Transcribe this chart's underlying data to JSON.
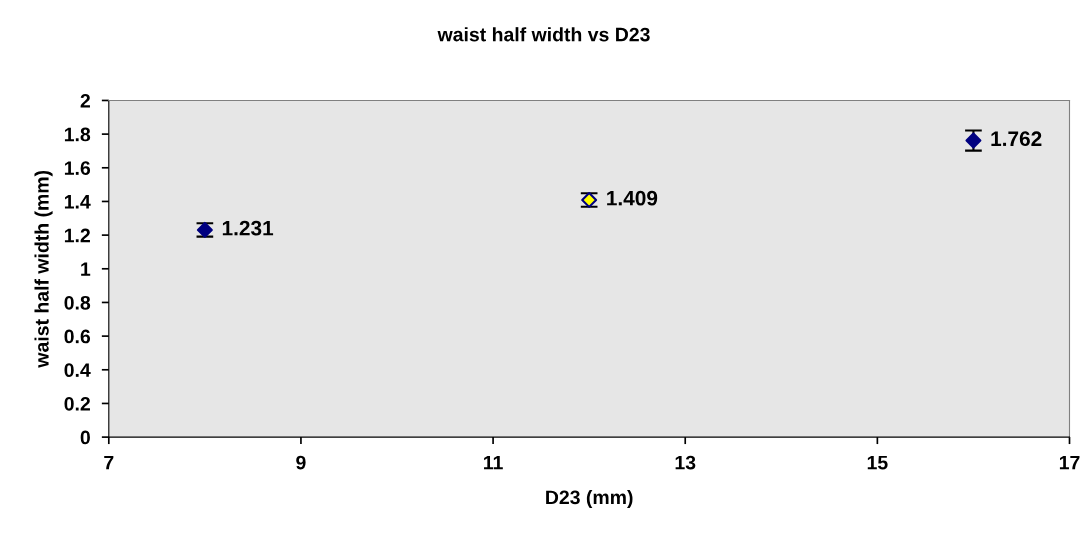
{
  "chart_data": {
    "type": "scatter",
    "title": "waist half width vs D23",
    "xlabel": "D23 (mm)",
    "ylabel": "waist half width (mm)",
    "x": [
      8,
      12,
      16
    ],
    "series": [
      {
        "color": "#000080",
        "colors": [
          "#000080",
          "#ffff00",
          "#000080"
        ],
        "values": [
          1.231,
          1.409,
          1.762
        ],
        "errors": [
          0.04,
          0.04,
          0.06
        ]
      }
    ],
    "data_labels": true,
    "marker": "diamond",
    "grid": false,
    "xlim": [
      7,
      17
    ],
    "xticks": [
      7,
      9,
      11,
      13,
      15,
      17
    ],
    "ylim": [
      0,
      2
    ],
    "yticks": [
      0,
      0.2,
      0.4,
      0.6,
      0.8,
      1,
      1.2,
      1.4,
      1.6,
      1.8,
      2
    ]
  }
}
